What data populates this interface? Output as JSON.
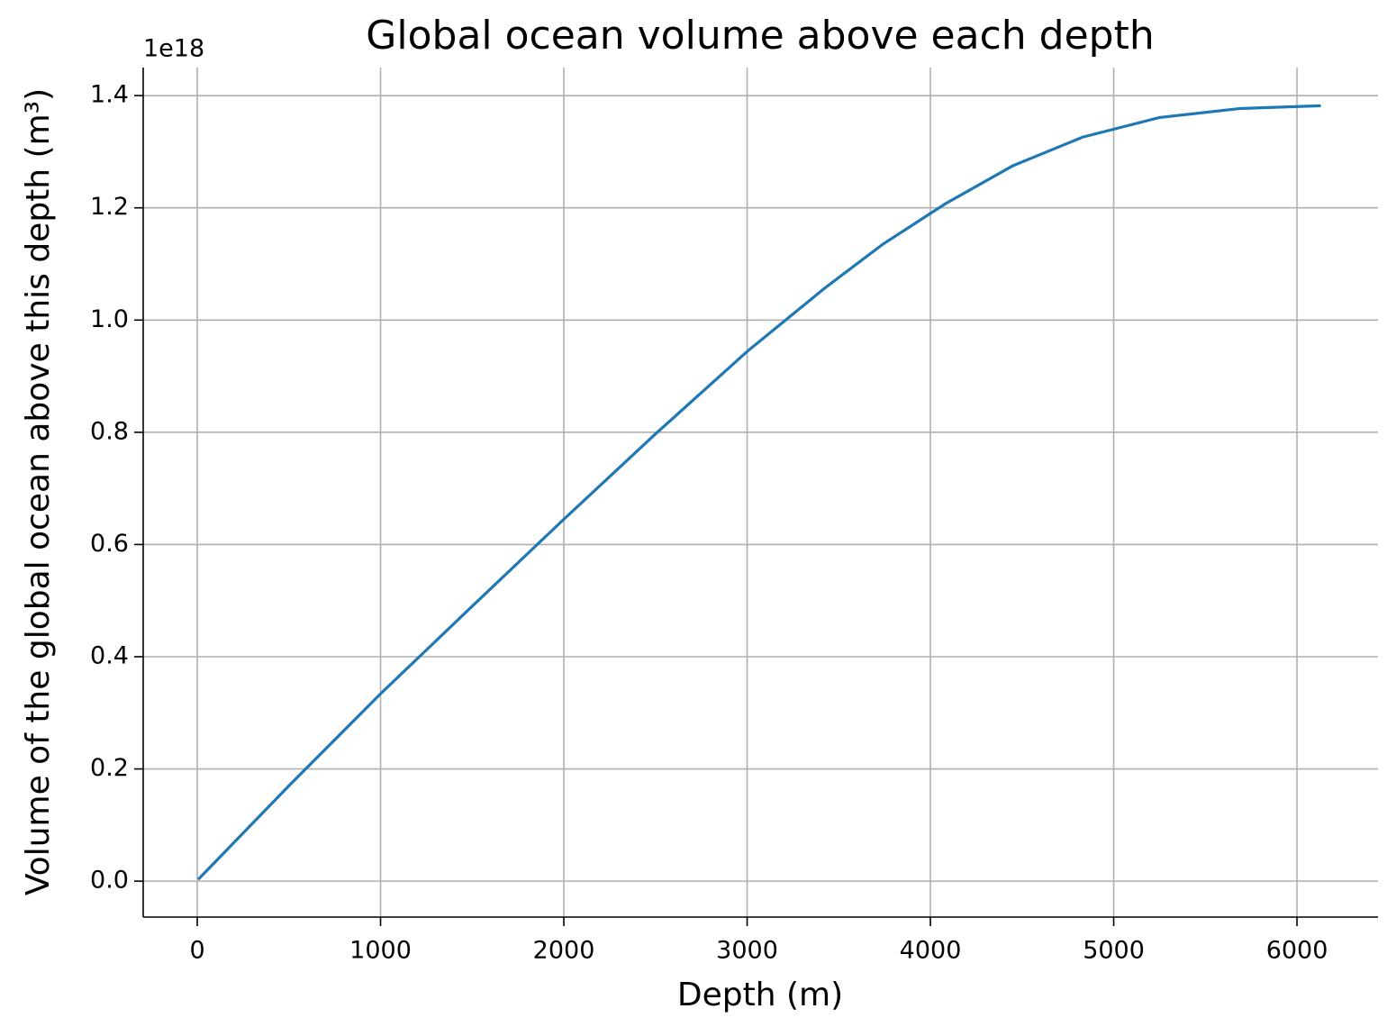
{
  "chart_data": {
    "type": "line",
    "title": "Global ocean volume above each depth",
    "x_label": "Depth (m)",
    "y_label": "Volume of the global ocean above this depth (m³)",
    "y_offset_label": "1e18",
    "x": [
      5,
      500,
      1000,
      1500,
      2000,
      2500,
      3000,
      3420,
      3740,
      4080,
      4450,
      4830,
      5250,
      5690,
      6130
    ],
    "series": [
      {
        "name": "volume",
        "color": "#1f77b4",
        "values": [
          0.003,
          0.17,
          0.334,
          0.49,
          0.645,
          0.797,
          0.944,
          1.056,
          1.135,
          1.207,
          1.275,
          1.326,
          1.361,
          1.377,
          1.382
        ]
      }
    ],
    "xlim": [
      -295,
      6442
    ],
    "ylim": [
      -0.064,
      1.45
    ],
    "xticks": [
      0,
      1000,
      2000,
      3000,
      4000,
      5000,
      6000
    ],
    "yticks": [
      {
        "value": 0,
        "label": "0.0"
      },
      {
        "value": 0.2,
        "label": "0.2"
      },
      {
        "value": 0.4,
        "label": "0.4"
      },
      {
        "value": 0.6,
        "label": "0.6"
      },
      {
        "value": 0.8,
        "label": "0.8"
      },
      {
        "value": 1.0,
        "label": "1.0"
      },
      {
        "value": 1.2,
        "label": "1.2"
      },
      {
        "value": 1.4,
        "label": "1.4"
      }
    ],
    "grid": true
  }
}
